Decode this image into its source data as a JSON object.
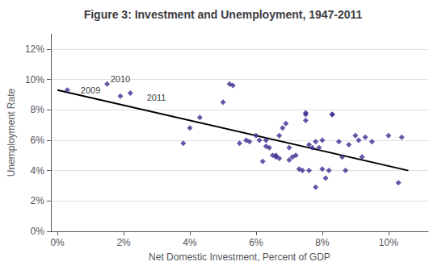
{
  "chart_data": {
    "type": "scatter",
    "title": "Figure 3: Investment and Unemployment, 1947-2011",
    "xlabel": "Net Domestic Investment, Percent of GDP",
    "ylabel": "Unemployment Rate",
    "series": [
      {
        "type": "scatter",
        "color": "#3D2B8E",
        "marker": "diamond",
        "x": [
          0.003,
          0.015,
          0.019,
          0.022,
          0.038,
          0.04,
          0.043,
          0.05,
          0.052,
          0.053,
          0.055,
          0.057,
          0.058,
          0.06,
          0.061,
          0.062,
          0.063,
          0.063,
          0.064,
          0.065,
          0.066,
          0.066,
          0.067,
          0.067,
          0.068,
          0.069,
          0.07,
          0.07,
          0.071,
          0.072,
          0.073,
          0.074,
          0.075,
          0.075,
          0.075,
          0.076,
          0.076,
          0.077,
          0.078,
          0.078,
          0.079,
          0.08,
          0.08,
          0.081,
          0.082,
          0.083,
          0.083,
          0.085,
          0.086,
          0.087,
          0.088,
          0.09,
          0.091,
          0.092,
          0.093,
          0.095,
          0.1,
          0.103,
          0.104
        ],
        "values": [
          0.093,
          0.097,
          0.089,
          0.091,
          0.058,
          0.068,
          0.075,
          0.085,
          0.097,
          0.096,
          0.058,
          0.06,
          0.059,
          0.063,
          0.06,
          0.046,
          0.056,
          0.06,
          0.055,
          0.05,
          0.05,
          0.049,
          0.048,
          0.063,
          0.068,
          0.071,
          0.047,
          0.055,
          0.049,
          0.05,
          0.041,
          0.04,
          0.077,
          0.073,
          0.078,
          0.04,
          0.057,
          0.055,
          0.059,
          0.029,
          0.055,
          0.06,
          0.041,
          0.035,
          0.04,
          0.077,
          0.077,
          0.059,
          0.049,
          0.04,
          0.057,
          0.063,
          0.06,
          0.049,
          0.062,
          0.059,
          0.063,
          0.032,
          0.062
        ]
      },
      {
        "type": "line",
        "color": "#000000",
        "line_style": "solid",
        "x": [
          0.0,
          0.106
        ],
        "values": [
          0.093,
          0.04
        ]
      }
    ],
    "annotations": [
      {
        "text": "2009",
        "x": 0.007,
        "y": 0.093
      },
      {
        "text": "2010",
        "x": 0.016,
        "y": 0.1005
      },
      {
        "text": "2011",
        "x": 0.027,
        "y": 0.088
      }
    ],
    "xlim": [
      -0.002,
      0.112
    ],
    "ylim": [
      0.0,
      0.13
    ],
    "xticks": [
      {
        "value": 0.0,
        "label": "0%"
      },
      {
        "value": 0.02,
        "label": "2%"
      },
      {
        "value": 0.04,
        "label": "4%"
      },
      {
        "value": 0.06,
        "label": "6%"
      },
      {
        "value": 0.08,
        "label": "8%"
      },
      {
        "value": 0.1,
        "label": "10%"
      }
    ],
    "yticks": [
      {
        "value": 0.0,
        "label": "0%"
      },
      {
        "value": 0.02,
        "label": "2%"
      },
      {
        "value": 0.04,
        "label": "4%"
      },
      {
        "value": 0.06,
        "label": "6%"
      },
      {
        "value": 0.08,
        "label": "8%"
      },
      {
        "value": 0.1,
        "label": "10%"
      },
      {
        "value": 0.12,
        "label": "12%"
      }
    ],
    "grid": true
  }
}
